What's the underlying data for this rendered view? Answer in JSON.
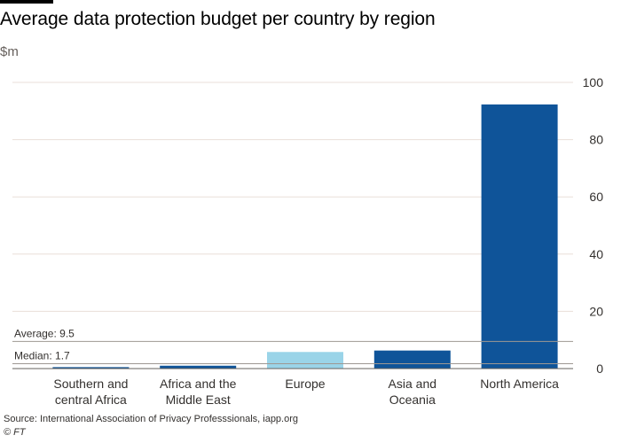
{
  "chart_data": {
    "type": "bar",
    "title": "Average data protection budget per country by region",
    "unit_label": "$m",
    "categories": [
      [
        "Southern and",
        "central Africa"
      ],
      [
        "Africa and the",
        "Middle East"
      ],
      [
        "Europe"
      ],
      [
        "Asia and",
        "Oceania"
      ],
      [
        "North America"
      ]
    ],
    "values": [
      0.5,
      1.0,
      5.8,
      6.3,
      92.3
    ],
    "bar_colors": [
      "#0f5499",
      "#0f5499",
      "#9ad4e8",
      "#0f5499",
      "#0f5499"
    ],
    "ylim": [
      0,
      100
    ],
    "yticks": [
      0,
      20,
      40,
      60,
      80,
      100
    ],
    "grid": true,
    "reference_lines": [
      {
        "label": "Average: 9.5",
        "value": 9.5
      },
      {
        "label": "Median: 1.7",
        "value": 1.7
      }
    ]
  },
  "source": "Source: International Association of Privacy Professsionals, iapp.org",
  "copyright": "© FT",
  "colors": {
    "grid": "#e9dfd8",
    "axis": "#66605c",
    "reference_line": "#9e9893",
    "text": "#33302e"
  }
}
